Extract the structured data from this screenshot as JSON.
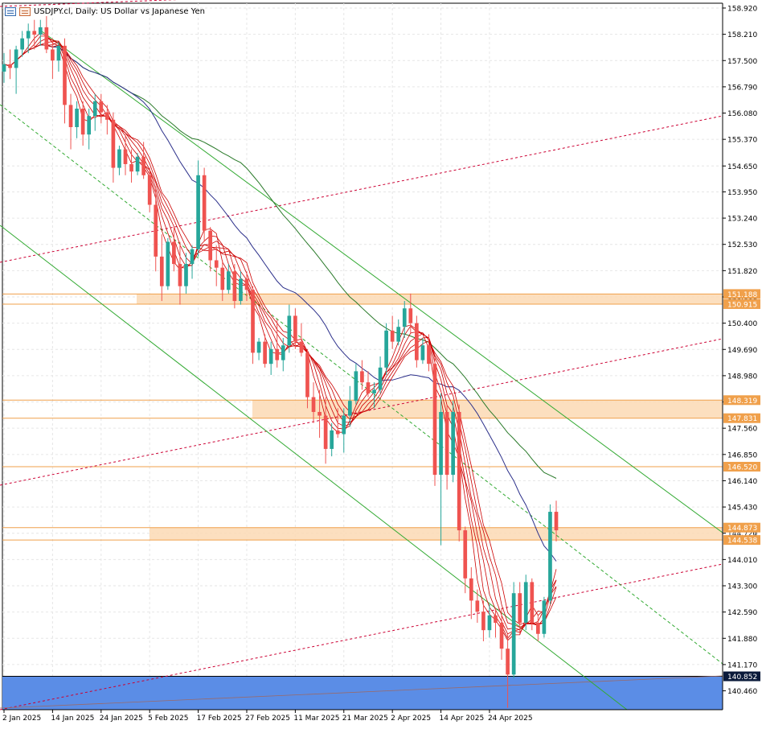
{
  "window": {
    "title": "USDJPY.cl, Daily:  US Dollar vs Japanese Yen",
    "icons": [
      "chart-window-icon",
      "chart-properties-icon"
    ]
  },
  "chart_data": {
    "type": "candlestick",
    "title": "USDJPY.cl, Daily:  US Dollar vs Japanese Yen",
    "y_ticks": [
      "158.920",
      "158.210",
      "157.500",
      "156.790",
      "156.080",
      "155.370",
      "154.650",
      "153.950",
      "153.240",
      "152.530",
      "151.820",
      "151.110",
      "150.400",
      "149.690",
      "148.980",
      "148.270",
      "147.560",
      "146.850",
      "146.140",
      "145.430",
      "144.720",
      "144.010",
      "143.300",
      "142.590",
      "141.880",
      "141.170",
      "140.460"
    ],
    "x_ticks": [
      "2 Jan 2025",
      "14 Jan 2025",
      "24 Jan 2025",
      "5 Feb 2025",
      "17 Feb 2025",
      "27 Feb 2025",
      "11 Mar 2025",
      "21 Mar 2025",
      "2 Apr 2025",
      "14 Apr 2025",
      "24 Apr 2025"
    ],
    "ylim": [
      139.95,
      159.05
    ],
    "grid": true,
    "candles": [
      [
        157.2,
        157.7,
        156.9,
        157.4
      ],
      [
        157.4,
        157.8,
        157.0,
        157.3
      ],
      [
        157.3,
        157.9,
        156.6,
        157.8
      ],
      [
        157.8,
        158.3,
        157.6,
        158.1
      ],
      [
        158.1,
        158.5,
        157.7,
        158.3
      ],
      [
        158.3,
        158.6,
        157.8,
        158.2
      ],
      [
        158.2,
        158.6,
        157.9,
        158.4
      ],
      [
        158.4,
        158.7,
        157.7,
        157.8
      ],
      [
        157.8,
        158.1,
        157.0,
        157.5
      ],
      [
        157.5,
        158.0,
        157.2,
        157.9
      ],
      [
        157.9,
        158.1,
        155.8,
        156.3
      ],
      [
        156.3,
        156.6,
        155.1,
        155.7
      ],
      [
        155.7,
        156.4,
        155.4,
        156.2
      ],
      [
        156.2,
        156.4,
        155.2,
        155.5
      ],
      [
        155.5,
        156.2,
        155.1,
        156.0
      ],
      [
        156.0,
        156.6,
        155.6,
        156.4
      ],
      [
        156.4,
        156.6,
        155.8,
        156.1
      ],
      [
        156.1,
        156.3,
        155.5,
        155.9
      ],
      [
        155.9,
        156.1,
        154.2,
        154.6
      ],
      [
        154.6,
        155.2,
        154.4,
        155.1
      ],
      [
        155.1,
        155.5,
        154.4,
        154.7
      ],
      [
        154.7,
        155.1,
        154.2,
        154.5
      ],
      [
        154.5,
        155.0,
        154.4,
        154.9
      ],
      [
        154.9,
        155.3,
        154.3,
        154.4
      ],
      [
        154.4,
        154.6,
        153.4,
        153.6
      ],
      [
        153.6,
        154.1,
        151.8,
        152.2
      ],
      [
        152.2,
        152.8,
        151.0,
        151.4
      ],
      [
        151.4,
        152.7,
        151.3,
        152.6
      ],
      [
        152.6,
        153.0,
        151.8,
        152.0
      ],
      [
        152.0,
        152.6,
        150.9,
        151.4
      ],
      [
        151.4,
        152.3,
        151.2,
        152.0
      ],
      [
        152.0,
        152.5,
        151.6,
        152.4
      ],
      [
        152.4,
        154.8,
        152.2,
        154.4
      ],
      [
        154.4,
        154.6,
        152.6,
        152.9
      ],
      [
        152.9,
        153.0,
        151.8,
        152.1
      ],
      [
        152.1,
        152.5,
        151.4,
        151.9
      ],
      [
        151.9,
        152.1,
        151.0,
        151.3
      ],
      [
        151.3,
        152.0,
        151.2,
        151.8
      ],
      [
        151.8,
        152.0,
        150.8,
        151.0
      ],
      [
        151.0,
        151.8,
        150.9,
        151.6
      ],
      [
        151.6,
        151.8,
        151.0,
        151.3
      ],
      [
        151.3,
        151.4,
        149.3,
        149.6
      ],
      [
        149.6,
        150.0,
        149.4,
        149.9
      ],
      [
        149.9,
        150.1,
        149.2,
        149.3
      ],
      [
        149.3,
        149.9,
        149.0,
        149.7
      ],
      [
        149.7,
        150.5,
        149.2,
        149.4
      ],
      [
        149.4,
        150.0,
        149.1,
        149.8
      ],
      [
        149.8,
        150.9,
        149.6,
        150.6
      ],
      [
        150.6,
        150.8,
        149.7,
        149.9
      ],
      [
        149.9,
        150.4,
        149.5,
        149.6
      ],
      [
        149.6,
        149.7,
        148.1,
        148.4
      ],
      [
        148.4,
        148.8,
        147.7,
        148.0
      ],
      [
        148.0,
        148.6,
        147.3,
        147.9
      ],
      [
        147.9,
        148.4,
        146.6,
        147.0
      ],
      [
        147.0,
        147.7,
        146.8,
        147.5
      ],
      [
        147.5,
        148.1,
        147.3,
        147.4
      ],
      [
        147.4,
        148.1,
        146.9,
        147.9
      ],
      [
        147.9,
        148.7,
        147.6,
        148.3
      ],
      [
        148.3,
        149.3,
        148.2,
        149.1
      ],
      [
        149.1,
        149.4,
        148.6,
        148.8
      ],
      [
        148.8,
        149.1,
        148.4,
        148.5
      ],
      [
        148.5,
        148.8,
        148.1,
        148.6
      ],
      [
        148.6,
        149.5,
        148.5,
        149.2
      ],
      [
        149.2,
        150.4,
        149.0,
        150.2
      ],
      [
        150.2,
        150.6,
        149.7,
        149.9
      ],
      [
        149.9,
        150.5,
        149.8,
        150.3
      ],
      [
        150.3,
        151.0,
        150.0,
        150.8
      ],
      [
        150.8,
        151.2,
        150.1,
        150.4
      ],
      [
        150.4,
        150.6,
        149.2,
        149.4
      ],
      [
        149.4,
        150.0,
        149.3,
        149.8
      ],
      [
        149.8,
        150.1,
        149.1,
        149.3
      ],
      [
        149.3,
        149.5,
        146.0,
        146.3
      ],
      [
        146.3,
        148.5,
        144.4,
        148.0
      ],
      [
        148.0,
        148.2,
        145.9,
        146.3
      ],
      [
        146.3,
        148.3,
        146.1,
        148.0
      ],
      [
        148.0,
        148.2,
        144.5,
        144.8
      ],
      [
        144.8,
        144.9,
        143.1,
        143.5
      ],
      [
        143.5,
        143.8,
        142.4,
        142.9
      ],
      [
        142.9,
        143.2,
        142.3,
        142.6
      ],
      [
        142.6,
        142.9,
        141.8,
        142.1
      ],
      [
        142.1,
        142.8,
        141.9,
        142.5
      ],
      [
        142.5,
        142.7,
        141.9,
        142.3
      ],
      [
        142.3,
        142.7,
        141.3,
        141.6
      ],
      [
        141.6,
        142.0,
        140.0,
        140.9
      ],
      [
        140.9,
        143.4,
        140.8,
        143.1
      ],
      [
        143.1,
        143.4,
        142.0,
        142.3
      ],
      [
        142.3,
        143.6,
        142.1,
        143.4
      ],
      [
        143.4,
        143.5,
        142.1,
        142.3
      ],
      [
        142.3,
        142.5,
        141.8,
        142.0
      ],
      [
        142.0,
        143.0,
        141.9,
        142.9
      ],
      [
        142.9,
        145.5,
        142.8,
        145.3
      ],
      [
        145.3,
        145.6,
        144.5,
        144.8
      ]
    ],
    "moving_averages": [
      {
        "color": "#2b2f8a",
        "kind": "slow-ma"
      },
      {
        "color": "#2a7a2a",
        "kind": "slower-ma"
      },
      {
        "color": "#cc0000",
        "kind": "ma-ribbon"
      }
    ],
    "horizontal_levels": [
      {
        "label": "151.188",
        "value": 151.188,
        "color": "#f0a04b"
      },
      {
        "label": "150.915",
        "value": 150.915,
        "color": "#f0a04b"
      },
      {
        "label": "148.319",
        "value": 148.319,
        "color": "#f0a04b"
      },
      {
        "label": "147.831",
        "value": 147.831,
        "color": "#f0a04b"
      },
      {
        "label": "146.520",
        "value": 146.52,
        "color": "#f0a04b"
      },
      {
        "label": "144.873",
        "value": 144.873,
        "color": "#f0a04b"
      },
      {
        "label": "144.538",
        "value": 144.538,
        "color": "#f0a04b"
      },
      {
        "label": "140.852",
        "value": 140.852,
        "color": "#000000"
      }
    ],
    "overlap_readout": "144.721",
    "zones": [
      {
        "from": 150.915,
        "to": 151.188,
        "color": "#fbd9b4"
      },
      {
        "from": 147.831,
        "to": 148.319,
        "color": "#fbd9b4"
      },
      {
        "from": 144.538,
        "to": 144.873,
        "color": "#fbd9b4"
      },
      {
        "from": 139.95,
        "to": 140.852,
        "color": "#5b8de6"
      }
    ],
    "colors": {
      "bull": "#26a69a",
      "bear": "#ef5350",
      "channel": "#33aa33",
      "trend": "#cc0033",
      "level": "#f0a04b",
      "zone": "#fbd9b4",
      "demand": "#5b8de6"
    }
  }
}
